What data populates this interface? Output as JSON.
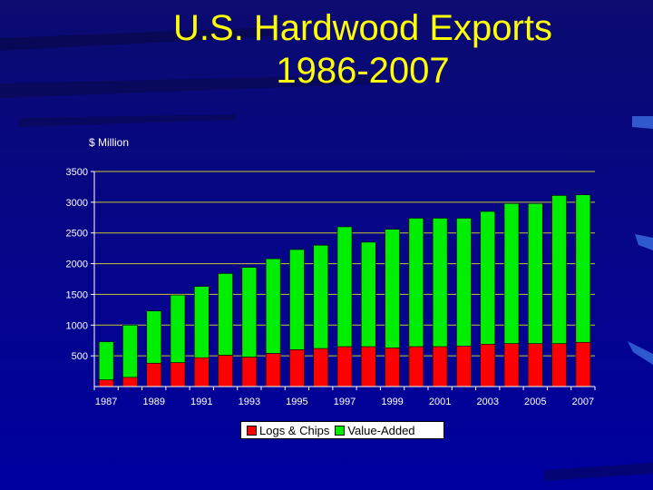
{
  "title_line1": "U.S. Hardwood Exports",
  "title_line2": "1986-2007",
  "colors": {
    "background": "#0a0a80",
    "title": "#ffff00",
    "logs_chips": "#ff0000",
    "value_added": "#00ee00",
    "gridline": "#c8c830",
    "axis_text": "#ffffff"
  },
  "chart_data": {
    "type": "bar",
    "stacked": true,
    "title": "U.S. Hardwood Exports 1986-2007",
    "ylabel": "$ Million",
    "ylim": [
      0,
      3500
    ],
    "yticks": [
      500,
      1000,
      1500,
      2000,
      2500,
      3000,
      3500
    ],
    "grid": true,
    "legend_position": "bottom",
    "categories": [
      "1987",
      "1988",
      "1989",
      "1990",
      "1991",
      "1992",
      "1993",
      "1994",
      "1995",
      "1996",
      "1997",
      "1998",
      "1999",
      "2000",
      "2001",
      "2002",
      "2003",
      "2004",
      "2005",
      "2006",
      "2007"
    ],
    "x_tick_labels": [
      "1987",
      "",
      "1989",
      "",
      "1991",
      "",
      "1993",
      "",
      "1995",
      "",
      "1997",
      "",
      "1999",
      "",
      "2001",
      "",
      "2003",
      "",
      "2005",
      "",
      "2007"
    ],
    "series": [
      {
        "name": "Logs & Chips",
        "values": [
          110,
          150,
          380,
          390,
          470,
          510,
          480,
          540,
          600,
          620,
          650,
          650,
          630,
          650,
          650,
          660,
          690,
          700,
          700,
          700,
          720
        ]
      },
      {
        "name": "Value-Added",
        "values": [
          620,
          850,
          850,
          1100,
          1160,
          1330,
          1460,
          1540,
          1630,
          1680,
          1950,
          1700,
          1930,
          2090,
          2090,
          2080,
          2160,
          2280,
          2280,
          2410,
          2400
        ]
      }
    ]
  }
}
